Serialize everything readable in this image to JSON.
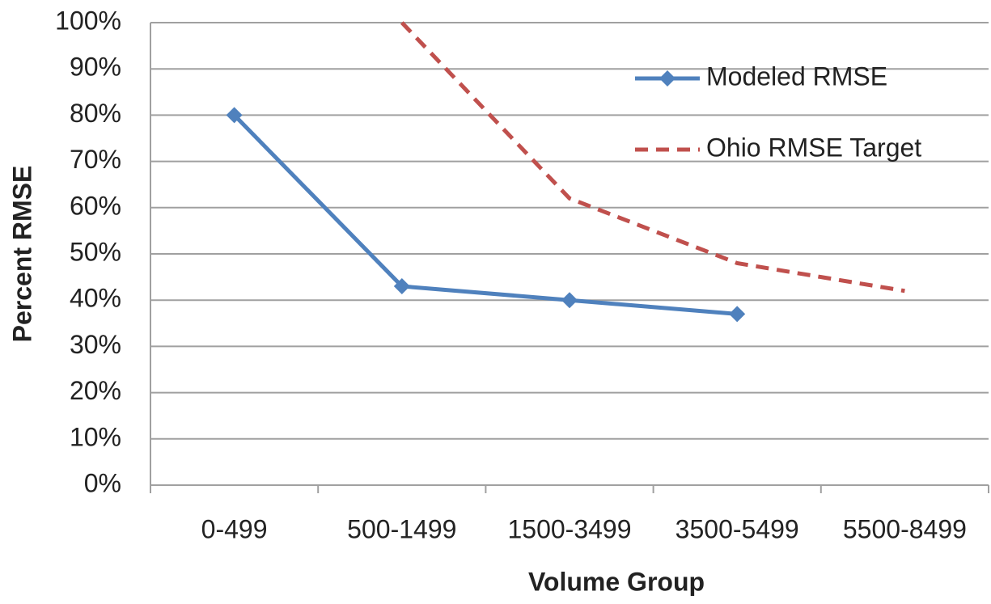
{
  "chart_data": {
    "type": "line",
    "xlabel": "Volume Group",
    "ylabel": "Percent RMSE",
    "categories": [
      "0-499",
      "500-1499",
      "1500-3499",
      "3500-5499",
      "5500-8499"
    ],
    "series": [
      {
        "name": "Modeled RMSE",
        "color": "#4f81bd",
        "style": "solid",
        "marker": "diamond",
        "values": [
          80,
          43,
          40,
          37,
          null
        ]
      },
      {
        "name": "Ohio RMSE Target",
        "color": "#c0504d",
        "style": "dashed",
        "marker": "none",
        "values": [
          null,
          100,
          62,
          48,
          42
        ]
      }
    ],
    "ylim": [
      0,
      100
    ],
    "yticks": [
      {
        "value": 0,
        "label": "0%"
      },
      {
        "value": 10,
        "label": "10%"
      },
      {
        "value": 20,
        "label": "20%"
      },
      {
        "value": 30,
        "label": "30%"
      },
      {
        "value": 40,
        "label": "40%"
      },
      {
        "value": 50,
        "label": "50%"
      },
      {
        "value": 60,
        "label": "60%"
      },
      {
        "value": 70,
        "label": "70%"
      },
      {
        "value": 80,
        "label": "80%"
      },
      {
        "value": 90,
        "label": "90%"
      },
      {
        "value": 100,
        "label": "100%"
      }
    ],
    "grid": true,
    "legend": "upper right"
  }
}
